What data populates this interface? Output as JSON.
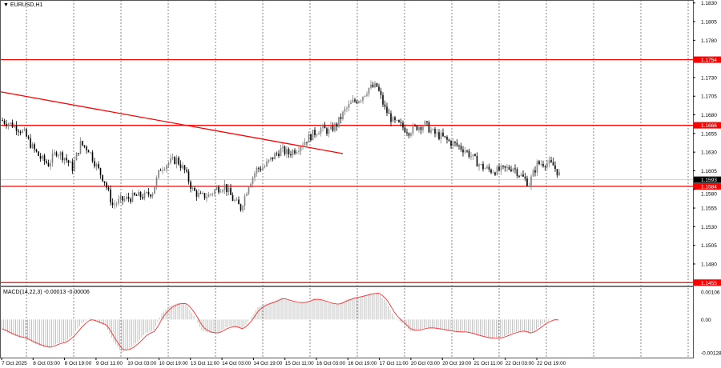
{
  "window": {
    "symbol_title": "EURUSD,H1",
    "menu_icon": "triangle-down-icon"
  },
  "colors": {
    "level_line": "#ff0000",
    "candle": "#000000",
    "histogram": "#c0c0c0",
    "signal": "#ff3030",
    "current_price_bg": "#000000",
    "level_label_bg": "#ff0000"
  },
  "price_axis": {
    "ticks": [
      "1.1830",
      "1.1805",
      "1.1780",
      "1.1730",
      "1.1705",
      "1.1680",
      "1.1655",
      "1.1630",
      "1.1605",
      "1.1580",
      "1.1555",
      "1.1530",
      "1.1505",
      "1.1480"
    ],
    "range": [
      1.1451,
      1.1834
    ]
  },
  "levels": [
    {
      "price": "1.1754"
    },
    {
      "price": "1.1666"
    },
    {
      "price": "1.1584"
    },
    {
      "price": "1.1455"
    }
  ],
  "current_price": "1.1593",
  "trendline": {
    "start_price": 1.1711,
    "end_price": 1.1628,
    "start_time": "7 Oct 2025",
    "end_time": "16 Oct 03:00"
  },
  "time_axis": [
    "7 Oct 2025",
    "8 Oct 03:00",
    "8 Oct 19:00",
    "9 Oct 11:00",
    "10 Oct 03:00",
    "10 Oct 19:00",
    "13 Oct 11:00",
    "14 Oct 03:00",
    "14 Oct 19:00",
    "15 Oct 11:00",
    "16 Oct 03:00",
    "16 Oct 19:00",
    "17 Oct 11:00",
    "20 Oct 03:00",
    "20 Oct 19:00",
    "21 Oct 11:00",
    "22 Oct 03:00",
    "22 Oct 19:00"
  ],
  "chart_data": {
    "type": "candlestick",
    "close": [
      1.1673,
      1.1669,
      1.1664,
      1.1655,
      1.1636,
      1.1622,
      1.1614,
      1.1631,
      1.1623,
      1.1609,
      1.1641,
      1.1634,
      1.1611,
      1.1591,
      1.1559,
      1.1565,
      1.1568,
      1.1571,
      1.1571,
      1.1577,
      1.1609,
      1.1616,
      1.162,
      1.1605,
      1.1579,
      1.157,
      1.1572,
      1.1581,
      1.1585,
      1.1567,
      1.1555,
      1.1587,
      1.1607,
      1.1611,
      1.1623,
      1.1633,
      1.1628,
      1.1635,
      1.1645,
      1.1654,
      1.1662,
      1.1658,
      1.1667,
      1.1686,
      1.1697,
      1.1703,
      1.1716,
      1.1718,
      1.1688,
      1.1671,
      1.1665,
      1.1658,
      1.1664,
      1.1667,
      1.1656,
      1.1651,
      1.1644,
      1.1639,
      1.1633,
      1.1622,
      1.1611,
      1.1606,
      1.1605,
      1.1607,
      1.161,
      1.1598,
      1.1588,
      1.1614,
      1.1616,
      1.1612,
      1.1596,
      1.1593
    ]
  },
  "macd": {
    "label": "MACD(14,22,3) -0.00013 -0.00006",
    "ticks": [
      "0.00106",
      "0.00",
      "-0.00128"
    ],
    "range": [
      -0.00128,
      0.00106
    ],
    "values": [
      -0.00036,
      -0.00055,
      -0.00067,
      -0.00073,
      -0.00091,
      -0.00103,
      -0.00109,
      -0.00091,
      -0.00085,
      -0.00055,
      -0.00015,
      6e-05,
      -0.00012,
      -0.00024,
      -0.00085,
      -0.00127,
      -0.00112,
      -0.00085,
      -0.00052,
      -0.00042,
      0.00024,
      0.00052,
      0.00064,
      0.00061,
      0.00015,
      -0.00042,
      -0.00052,
      -0.00052,
      -0.0003,
      -0.00024,
      -0.00039,
      0.0,
      0.00048,
      0.00061,
      0.0007,
      0.00085,
      0.0007,
      0.00064,
      0.00067,
      0.00082,
      0.00073,
      0.00061,
      0.00058,
      0.00076,
      0.00085,
      0.00091,
      0.001,
      0.00103,
      0.00067,
      9e-05,
      -0.00015,
      -0.00045,
      -0.00042,
      -0.0003,
      -0.00033,
      -0.00039,
      -0.00045,
      -0.00048,
      -0.00048,
      -0.00058,
      -0.00067,
      -0.00073,
      -0.00073,
      -0.00061,
      -0.00048,
      -0.00042,
      -0.00055,
      -0.0003,
      -6e-05,
      3e-05,
      -9e-05,
      -0.00013
    ]
  }
}
